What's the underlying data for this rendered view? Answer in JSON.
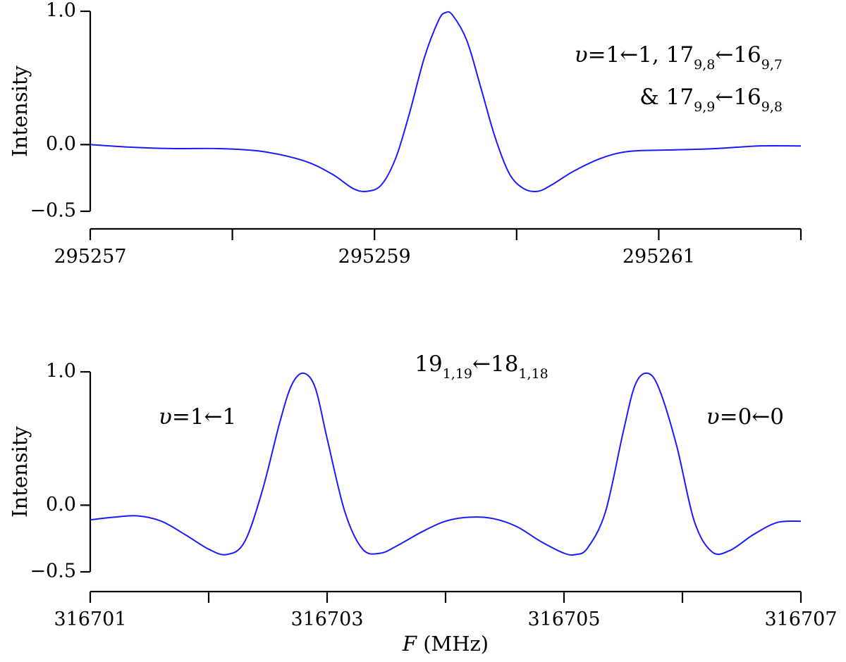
{
  "chart_data": [
    {
      "type": "line",
      "panel": "top",
      "ylabel": "Intensity",
      "xlabel": "",
      "xlim": [
        295257,
        295262
      ],
      "ylim": [
        -0.5,
        1.0
      ],
      "x_ticks_labeled": [
        "295257",
        "295259",
        "295261"
      ],
      "y_ticks": [
        "1.0",
        "0.0",
        "−0.5"
      ],
      "annotation": {
        "line1": {
          "v": "υ",
          "rest": "=1←1, 17",
          "sub1": "9,8",
          "arrow": "←16",
          "sub2": "9,7"
        },
        "line2": {
          "pre": "& 17",
          "sub1": "9,9",
          "arrow": "←16",
          "sub2": "9,8"
        }
      },
      "series": [
        {
          "color": "#1a1aff",
          "x": [
            295257.0,
            295257.3,
            295257.6,
            295257.9,
            295258.2,
            295258.5,
            295258.7,
            295258.85,
            295258.95,
            295259.05,
            295259.15,
            295259.25,
            295259.35,
            295259.45,
            295259.5,
            295259.55,
            295259.65,
            295259.75,
            295259.85,
            295259.95,
            295260.05,
            295260.15,
            295260.25,
            295260.4,
            295260.6,
            295260.8,
            295261.1,
            295261.4,
            295261.7,
            295262.0
          ],
          "y": [
            0.0,
            -0.02,
            -0.03,
            -0.03,
            -0.05,
            -0.12,
            -0.22,
            -0.33,
            -0.35,
            -0.3,
            -0.1,
            0.25,
            0.65,
            0.93,
            0.99,
            0.97,
            0.78,
            0.42,
            0.05,
            -0.22,
            -0.33,
            -0.35,
            -0.3,
            -0.2,
            -0.1,
            -0.05,
            -0.04,
            -0.03,
            -0.01,
            -0.01
          ]
        }
      ]
    },
    {
      "type": "line",
      "panel": "bottom",
      "ylabel": "Intensity",
      "xlabel": "F (MHz)",
      "xlim": [
        316701,
        316707
      ],
      "ylim": [
        -0.5,
        1.0
      ],
      "x_ticks_labeled": [
        "316701",
        "316703",
        "316705",
        "316707"
      ],
      "y_ticks": [
        "1.0",
        "0.0",
        "−0.5"
      ],
      "annotations": {
        "center": {
          "pre": "19",
          "sub1": "1,19",
          "arrow": "←18",
          "sub2": "1,18"
        },
        "left": {
          "v": "υ",
          "rest": "=1←1"
        },
        "right": {
          "v": "υ",
          "rest": "=0←0"
        }
      },
      "series": [
        {
          "color": "#1a1aff",
          "x": [
            316701.0,
            316701.2,
            316701.4,
            316701.6,
            316701.8,
            316702.0,
            316702.15,
            316702.3,
            316702.45,
            316702.6,
            316702.7,
            316702.8,
            316702.9,
            316703.0,
            316703.15,
            316703.3,
            316703.45,
            316703.6,
            316703.8,
            316704.0,
            316704.2,
            316704.4,
            316704.6,
            316704.8,
            316705.0,
            316705.1,
            316705.2,
            316705.35,
            316705.5,
            316705.6,
            316705.7,
            316705.8,
            316705.95,
            316706.1,
            316706.25,
            316706.4,
            316706.6,
            316706.8,
            316707.0
          ],
          "y": [
            -0.11,
            -0.09,
            -0.08,
            -0.12,
            -0.22,
            -0.33,
            -0.37,
            -0.28,
            0.1,
            0.62,
            0.9,
            0.99,
            0.88,
            0.5,
            -0.05,
            -0.33,
            -0.36,
            -0.3,
            -0.2,
            -0.12,
            -0.09,
            -0.1,
            -0.16,
            -0.27,
            -0.36,
            -0.37,
            -0.32,
            -0.05,
            0.55,
            0.9,
            0.99,
            0.88,
            0.45,
            -0.12,
            -0.35,
            -0.34,
            -0.22,
            -0.13,
            -0.12
          ]
        }
      ]
    }
  ]
}
